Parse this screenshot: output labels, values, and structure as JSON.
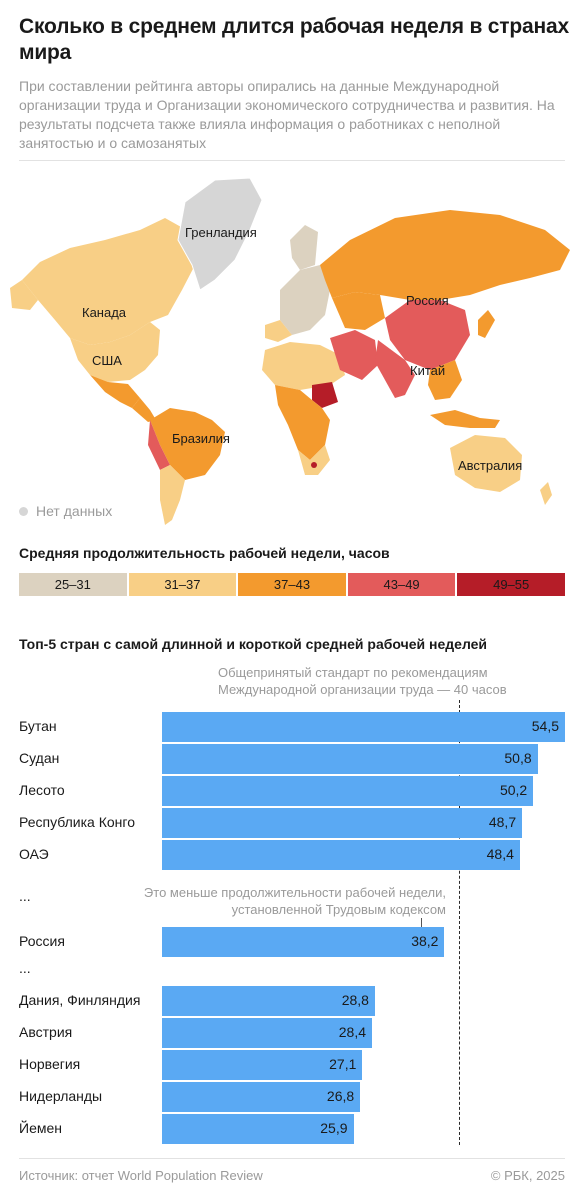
{
  "header": {
    "title": "Сколько в среднем длится рабочая неделя в странах мира",
    "subtitle": "При составлении рейтинга авторы опирались на данные Международной организации труда и Организации экономического сотрудничества и развития. На результаты подсчета также влияла информация о работниках с неполной занятостью и о самозанятых"
  },
  "map": {
    "labels": {
      "greenland": "Гренландия",
      "canada": "Канада",
      "usa": "США",
      "brazil": "Бразилия",
      "russia": "Россия",
      "china": "Китай",
      "australia": "Австралия"
    },
    "no_data_label": "Нет данных",
    "no_data_color": "#d6d6d6"
  },
  "legend": {
    "title": "Средняя продолжительность рабочей недели, часов",
    "items": [
      {
        "label": "25–31",
        "color": "#dcd2c0"
      },
      {
        "label": "31–37",
        "color": "#f8cf86"
      },
      {
        "label": "37–43",
        "color": "#f39a2e"
      },
      {
        "label": "43–49",
        "color": "#e35b5b"
      },
      {
        "label": "49–55",
        "color": "#b51d28"
      }
    ]
  },
  "top5": {
    "title": "Топ-5 стран с самой длинной и короткой средней рабочей неделей",
    "note_ilo": "Общепринятый стандарт по рекомендациям Международной организации труда — 40 часов",
    "note_russia": "Это меньше продолжительности рабочей недели, установленной Трудовым кодексом",
    "ellipsis": "..."
  },
  "chart_data": {
    "type": "bar",
    "orientation": "horizontal",
    "categories": [
      "Бутан",
      "Судан",
      "Лесото",
      "Республика Конго",
      "ОАЭ",
      "Россия",
      "Дания, Финляндия",
      "Австрия",
      "Норвегия",
      "Нидерланды",
      "Йемен"
    ],
    "values": [
      54.5,
      50.8,
      50.2,
      48.7,
      48.4,
      38.2,
      28.8,
      28.4,
      27.1,
      26.8,
      25.9
    ],
    "value_labels": [
      "54,5",
      "50,8",
      "50,2",
      "48,7",
      "48,4",
      "38,2",
      "28,8",
      "28,4",
      "27,1",
      "26,8",
      "25,9"
    ],
    "reference_line": 40,
    "bar_color": "#5aa9f3"
  },
  "footer": {
    "source": "Источник: отчет World Population Review",
    "copyright": "© РБК, 2025"
  }
}
